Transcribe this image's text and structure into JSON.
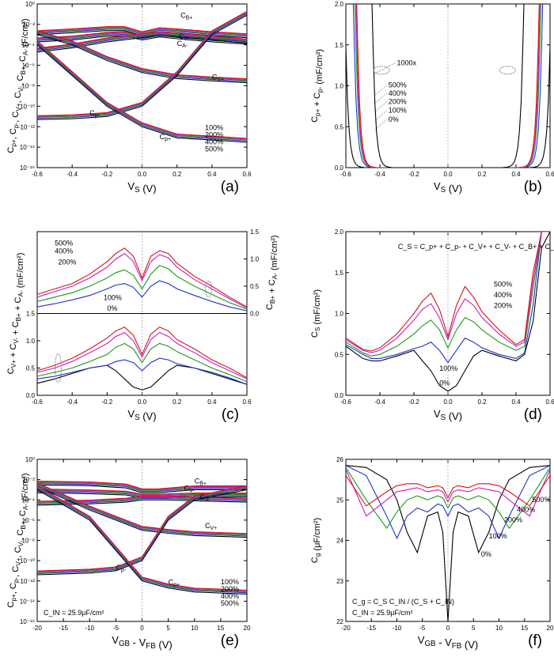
{
  "colors": {
    "black": "#000000",
    "blue": "#1f2fd0",
    "green": "#1a9a1a",
    "magenta": "#c21fc2",
    "red": "#e01010"
  },
  "chart_data": [
    {
      "panel_label": "(a)",
      "type": "line",
      "yscale": "log",
      "xlabel": "V_S (V)",
      "ylabel": "C_p+, C_p-, C_V+, C_V-, C_B+, C_A- (F/cm²)",
      "xlim": [
        -0.6,
        0.6
      ],
      "ylim": [
        1e-16,
        1
      ],
      "xticks": [
        "-0.6",
        "-0.4",
        "-0.2",
        "0.0",
        "0.2",
        "0.4",
        "0.6"
      ],
      "yticks": [
        "10⁰",
        "10⁻²",
        "10⁻⁴",
        "10⁻⁶",
        "10⁻⁸",
        "10⁻¹⁰",
        "10⁻¹²",
        "10⁻¹⁴",
        "10⁻¹⁶"
      ],
      "strain_levels": [
        "0%",
        "100%",
        "200%",
        "400%",
        "500%"
      ],
      "annotations": [
        "C_B+",
        "C_V-",
        "C_A-",
        "C_V+",
        "C_p-",
        "C_p+",
        "100%",
        "200%",
        "400%",
        "500%"
      ],
      "series": [
        {
          "label": "C_B+",
          "x": [
            -0.6,
            -0.4,
            -0.2,
            -0.1,
            0,
            0.1,
            0.2,
            0.4,
            0.6
          ],
          "y": [
            0.001,
            0.0015,
            0.0025,
            0.0025,
            0.0008,
            0.002,
            0.0015,
            0.0008,
            0.0005
          ]
        },
        {
          "label": "C_V-",
          "x": [
            -0.6,
            -0.4,
            -0.2,
            -0.1,
            0,
            0.1,
            0.2,
            0.4,
            0.6
          ],
          "y": [
            0.0002,
            0.0003,
            0.0007,
            0.0008,
            0.0003,
            0.0006,
            0.0004,
            0.0002,
            0.00012
          ]
        },
        {
          "label": "C_A-",
          "x": [
            -0.6,
            -0.4,
            -0.2,
            0,
            0.1,
            0.2,
            0.4,
            0.6
          ],
          "y": [
            2e-05,
            5e-05,
            0.0002,
            0.0005,
            0.0008,
            0.0006,
            0.0003,
            0.00015
          ]
        },
        {
          "label": "C_V+",
          "x": [
            -0.6,
            -0.4,
            -0.2,
            0,
            0.2,
            0.4,
            0.6
          ],
          "y": [
            0.001,
            0.0001,
            3e-06,
            2e-07,
            5e-08,
            3e-08,
            2e-08
          ]
        },
        {
          "label": "C_p-",
          "x": [
            -0.6,
            -0.4,
            -0.2,
            0,
            0.2,
            0.4,
            0.6
          ],
          "y": [
            5e-12,
            6e-12,
            1e-11,
            1e-10,
            1e-07,
            0.001,
            0.08
          ]
        },
        {
          "label": "C_p+",
          "x": [
            -0.6,
            -0.4,
            -0.2,
            0,
            0.2,
            0.4,
            0.6
          ],
          "y": [
            0.0001,
            1e-07,
            1e-10,
            1e-12,
            8e-14,
            5e-14,
            3e-14
          ]
        }
      ]
    },
    {
      "panel_label": "(b)",
      "type": "line",
      "xlabel": "V_S (V)",
      "ylabel": "C_p+ + C_p- (mF/cm²)",
      "xlim": [
        -0.6,
        0.6
      ],
      "ylim": [
        0,
        2.0
      ],
      "xticks": [
        "-0.6",
        "-0.4",
        "-0.2",
        "0.0",
        "0.2",
        "0.4",
        "0.6"
      ],
      "yticks": [
        "0.0",
        "0.5",
        "1.0",
        "1.5",
        "2.0"
      ],
      "annotations": [
        "1000x",
        "500%",
        "400%",
        "200%",
        "100%",
        "0%"
      ],
      "series": [
        {
          "name": "0%",
          "color": "#000000",
          "left_edge": -0.49,
          "right_edge": 0.49
        },
        {
          "name": "100%",
          "color": "#1f2fd0",
          "left_edge": -0.44,
          "right_edge": 0.44
        },
        {
          "name": "200%",
          "color": "#1a9a1a",
          "left_edge": -0.43,
          "right_edge": 0.43
        },
        {
          "name": "400%",
          "color": "#c21fc2",
          "left_edge": -0.425,
          "right_edge": 0.425
        },
        {
          "name": "500%",
          "color": "#e01010",
          "left_edge": -0.42,
          "right_edge": 0.42
        },
        {
          "name": "1000x",
          "color": "#000000",
          "left_edge": -0.33,
          "right_edge": 0.33
        }
      ]
    },
    {
      "panel_label": "(c)",
      "type": "line",
      "xlabel": "V_S (V)",
      "ylabel_left": "C_V+ + C_V- + C_B+ + C_A- (mF/cm²)",
      "ylabel_right": "C_B+ + C_A- (mF/cm²)",
      "xlim": [
        -0.6,
        0.6
      ],
      "ylim": [
        0,
        3.0
      ],
      "right_ylim": [
        0,
        1.5
      ],
      "xticks": [
        "-0.6",
        "-0.4",
        "-0.2",
        "0.0",
        "0.2",
        "0.4",
        "0.6"
      ],
      "left_yticks": [
        "0.0",
        "0.5",
        "1.0",
        "1.5"
      ],
      "right_yticks": [
        "0.0",
        "0.5",
        "1.0",
        "1.5"
      ],
      "annotations": [
        "500%",
        "400%",
        "200%",
        "100%",
        "0%"
      ],
      "x": [
        -0.6,
        -0.5,
        -0.4,
        -0.3,
        -0.2,
        -0.15,
        -0.1,
        -0.05,
        0,
        0.05,
        0.1,
        0.15,
        0.2,
        0.3,
        0.4,
        0.5,
        0.6
      ],
      "upper_series": [
        {
          "name": "100%",
          "color": "#1f2fd0",
          "values": [
            0.12,
            0.18,
            0.25,
            0.33,
            0.45,
            0.52,
            0.55,
            0.48,
            0.3,
            0.5,
            0.6,
            0.55,
            0.45,
            0.33,
            0.22,
            0.12,
            0.05
          ]
        },
        {
          "name": "200%",
          "color": "#1a9a1a",
          "values": [
            0.22,
            0.3,
            0.38,
            0.5,
            0.65,
            0.75,
            0.8,
            0.7,
            0.45,
            0.72,
            0.88,
            0.82,
            0.68,
            0.5,
            0.35,
            0.2,
            0.08
          ]
        },
        {
          "name": "400%",
          "color": "#c21fc2",
          "values": [
            0.3,
            0.4,
            0.5,
            0.65,
            0.85,
            1.0,
            1.1,
            0.95,
            0.6,
            0.95,
            1.08,
            1.02,
            0.85,
            0.62,
            0.45,
            0.27,
            0.1
          ]
        },
        {
          "name": "500%",
          "color": "#e01010",
          "values": [
            0.35,
            0.45,
            0.55,
            0.72,
            0.95,
            1.1,
            1.2,
            1.05,
            0.65,
            1.05,
            1.15,
            1.1,
            0.92,
            0.68,
            0.5,
            0.3,
            0.12
          ]
        }
      ],
      "lower_series": [
        {
          "name": "0%",
          "color": "#000000",
          "values": [
            0.22,
            0.3,
            0.4,
            0.5,
            0.55,
            0.45,
            0.3,
            0.15,
            0.1,
            0.15,
            0.3,
            0.45,
            0.55,
            0.5,
            0.4,
            0.3,
            0.2
          ]
        },
        {
          "name": "100%",
          "color": "#1f2fd0",
          "values": [
            0.3,
            0.35,
            0.42,
            0.5,
            0.55,
            0.62,
            0.65,
            0.6,
            0.45,
            0.6,
            0.68,
            0.65,
            0.58,
            0.5,
            0.42,
            0.32,
            0.2
          ]
        },
        {
          "name": "200%",
          "color": "#1a9a1a",
          "values": [
            0.35,
            0.42,
            0.5,
            0.62,
            0.75,
            0.88,
            0.95,
            0.85,
            0.6,
            0.85,
            0.95,
            0.9,
            0.8,
            0.65,
            0.5,
            0.38,
            0.25
          ]
        },
        {
          "name": "400%",
          "color": "#c21fc2",
          "values": [
            0.42,
            0.5,
            0.62,
            0.78,
            0.95,
            1.08,
            1.15,
            1.0,
            0.7,
            1.02,
            1.15,
            1.08,
            0.95,
            0.78,
            0.6,
            0.45,
            0.3
          ]
        },
        {
          "name": "500%",
          "color": "#e01010",
          "values": [
            0.45,
            0.55,
            0.68,
            0.85,
            1.05,
            1.18,
            1.25,
            1.1,
            0.75,
            1.12,
            1.25,
            1.18,
            1.02,
            0.85,
            0.65,
            0.5,
            0.32
          ]
        }
      ]
    },
    {
      "panel_label": "(d)",
      "type": "line",
      "xlabel": "V_S (V)",
      "ylabel": "C_S (mF/cm²)",
      "xlim": [
        -0.6,
        0.6
      ],
      "ylim": [
        0,
        2.0
      ],
      "xticks": [
        "-0.6",
        "-0.4",
        "-0.2",
        "0.0",
        "0.2",
        "0.4",
        "0.6"
      ],
      "yticks": [
        "0.0",
        "0.5",
        "1.0",
        "1.5",
        "2.0"
      ],
      "formula": "C_S = C_p+ + C_p- + C_V+ + C_V- + C_B+ + C_A-",
      "annotations": [
        "500%",
        "400%",
        "200%",
        "100%",
        "0%"
      ],
      "x": [
        -0.6,
        -0.5,
        -0.45,
        -0.4,
        -0.3,
        -0.2,
        -0.15,
        -0.1,
        -0.05,
        0,
        0.05,
        0.1,
        0.15,
        0.2,
        0.3,
        0.4,
        0.45,
        0.5,
        0.55,
        0.6
      ],
      "series": [
        {
          "name": "0%",
          "color": "#000000",
          "values": [
            0.6,
            0.45,
            0.42,
            0.42,
            0.48,
            0.55,
            0.42,
            0.3,
            0.12,
            0.05,
            0.12,
            0.3,
            0.48,
            0.55,
            0.48,
            0.42,
            0.5,
            0.9,
            1.8,
            2.0
          ]
        },
        {
          "name": "100%",
          "color": "#1f2fd0",
          "values": [
            0.62,
            0.5,
            0.45,
            0.45,
            0.5,
            0.57,
            0.6,
            0.65,
            0.55,
            0.4,
            0.55,
            0.7,
            0.65,
            0.58,
            0.5,
            0.45,
            0.52,
            1.1,
            2.0,
            2.0
          ]
        },
        {
          "name": "200%",
          "color": "#1a9a1a",
          "values": [
            0.65,
            0.52,
            0.48,
            0.5,
            0.6,
            0.75,
            0.85,
            0.92,
            0.8,
            0.58,
            0.8,
            0.95,
            0.9,
            0.8,
            0.65,
            0.55,
            0.6,
            1.3,
            2.0,
            2.0
          ]
        },
        {
          "name": "400%",
          "color": "#c21fc2",
          "values": [
            0.68,
            0.55,
            0.52,
            0.55,
            0.7,
            0.92,
            1.05,
            1.12,
            0.95,
            0.68,
            1.0,
            1.18,
            1.1,
            0.95,
            0.75,
            0.6,
            0.65,
            1.4,
            2.0,
            2.0
          ]
        },
        {
          "name": "500%",
          "color": "#e01010",
          "values": [
            0.7,
            0.56,
            0.54,
            0.58,
            0.75,
            1.0,
            1.15,
            1.25,
            1.05,
            0.72,
            1.1,
            1.33,
            1.2,
            1.02,
            0.8,
            0.62,
            0.68,
            1.5,
            2.0,
            2.0
          ]
        }
      ]
    },
    {
      "panel_label": "(e)",
      "type": "line",
      "yscale": "log",
      "xlabel": "V_GB - V_FB (V)",
      "ylabel": "C_p+, C_p-, C_V+, C_V-, C_B+, C_A- (F/cm²)",
      "xlim": [
        -20,
        20
      ],
      "ylim": [
        1e-16,
        1
      ],
      "xticks": [
        "-20",
        "-15",
        "-10",
        "-5",
        "0",
        "5",
        "10",
        "15",
        "20"
      ],
      "yticks": [
        "10⁰",
        "10⁻²",
        "10⁻⁴",
        "10⁻⁶",
        "10⁻⁸",
        "10⁻¹⁰",
        "10⁻¹²",
        "10⁻¹⁴",
        "10⁻¹⁶"
      ],
      "note": "C_IN = 25.9μF/cm²",
      "annotations": [
        "C_B+",
        "C_V-",
        "C_A-",
        "C_V+",
        "C_p-",
        "C_p+",
        "100%",
        "200%",
        "400%",
        "500%"
      ],
      "series": [
        {
          "label": "C_B+",
          "x": [
            -20,
            -10,
            -3,
            0,
            3,
            10,
            20
          ],
          "y": [
            0.003,
            0.0025,
            0.0015,
            0.0005,
            0.0005,
            0.001,
            0.001
          ]
        },
        {
          "label": "C_V-",
          "x": [
            -20,
            -10,
            -3,
            0,
            3,
            10,
            20
          ],
          "y": [
            0.0005,
            0.0004,
            0.0003,
            0.00015,
            0.00015,
            0.0002,
            0.0002
          ]
        },
        {
          "label": "C_A-",
          "x": [
            -20,
            -10,
            -3,
            0,
            5,
            10,
            20
          ],
          "y": [
            3e-05,
            4e-05,
            6e-05,
            0.0001,
            0.0001,
            8e-05,
            6e-05
          ]
        },
        {
          "label": "C_V+",
          "x": [
            -20,
            -10,
            -5,
            0,
            5,
            10,
            20
          ],
          "y": [
            0.002,
            1e-05,
            1e-06,
            1e-07,
            5e-08,
            3e-08,
            2e-08
          ]
        },
        {
          "label": "C_p-",
          "x": [
            -20,
            -10,
            -5,
            0,
            5,
            10,
            20
          ],
          "y": [
            4e-12,
            6e-12,
            1e-11,
            1e-10,
            1e-06,
            0.0001,
            0.001
          ]
        },
        {
          "label": "C_p+",
          "x": [
            -20,
            -10,
            -5,
            0,
            5,
            10,
            20
          ],
          "y": [
            0.001,
            1e-06,
            1e-09,
            1e-12,
            2e-13,
            8e-14,
            5e-14
          ]
        }
      ]
    },
    {
      "panel_label": "(f)",
      "type": "line",
      "xlabel": "V_GB - V_FB (V)",
      "ylabel": "C_g (μF/cm²)",
      "xlim": [
        -20,
        20
      ],
      "ylim": [
        22,
        26
      ],
      "xticks": [
        "-20",
        "-15",
        "-10",
        "-5",
        "0",
        "5",
        "10",
        "15",
        "20"
      ],
      "yticks": [
        "22",
        "23",
        "24",
        "25",
        "26"
      ],
      "formula": "C_g = C_S C_IN / (C_S + C_IN)",
      "note": "C_IN = 25.9μF/cm²",
      "annotations": [
        "500%",
        "400%",
        "200%",
        "100%",
        "0%"
      ],
      "x": [
        -20,
        -16,
        -12,
        -10,
        -8,
        -6,
        -4,
        -2,
        -1,
        0,
        1,
        2,
        4,
        6,
        8,
        10,
        12,
        16,
        20
      ],
      "series": [
        {
          "name": "0%",
          "color": "#000000",
          "values": [
            25.85,
            25.8,
            25.5,
            25.0,
            24.2,
            23.7,
            24.6,
            24.7,
            24.2,
            22.0,
            24.2,
            24.7,
            24.6,
            23.7,
            24.2,
            25.0,
            25.5,
            25.8,
            25.85
          ]
        },
        {
          "name": "100%",
          "color": "#1f2fd0",
          "values": [
            25.85,
            25.6,
            24.6,
            24.05,
            24.6,
            24.8,
            24.7,
            24.9,
            24.85,
            24.6,
            24.85,
            24.9,
            24.7,
            24.8,
            24.6,
            24.05,
            24.6,
            25.6,
            25.85
          ]
        },
        {
          "name": "200%",
          "color": "#1a9a1a",
          "values": [
            25.8,
            25.0,
            24.3,
            24.7,
            25.0,
            25.1,
            25.0,
            25.1,
            25.05,
            24.8,
            25.05,
            25.1,
            25.0,
            25.1,
            25.0,
            24.7,
            24.3,
            25.0,
            25.8
          ]
        },
        {
          "name": "400%",
          "color": "#c21fc2",
          "values": [
            25.75,
            24.6,
            25.0,
            25.2,
            25.25,
            25.3,
            25.2,
            25.25,
            25.2,
            24.95,
            25.2,
            25.25,
            25.2,
            25.3,
            25.25,
            25.2,
            25.0,
            24.6,
            25.75
          ]
        },
        {
          "name": "500%",
          "color": "#e01010",
          "values": [
            25.6,
            24.85,
            25.2,
            25.35,
            25.4,
            25.4,
            25.3,
            25.35,
            25.3,
            25.05,
            25.3,
            25.35,
            25.3,
            25.4,
            25.4,
            25.35,
            25.2,
            24.85,
            25.6
          ]
        }
      ]
    }
  ]
}
